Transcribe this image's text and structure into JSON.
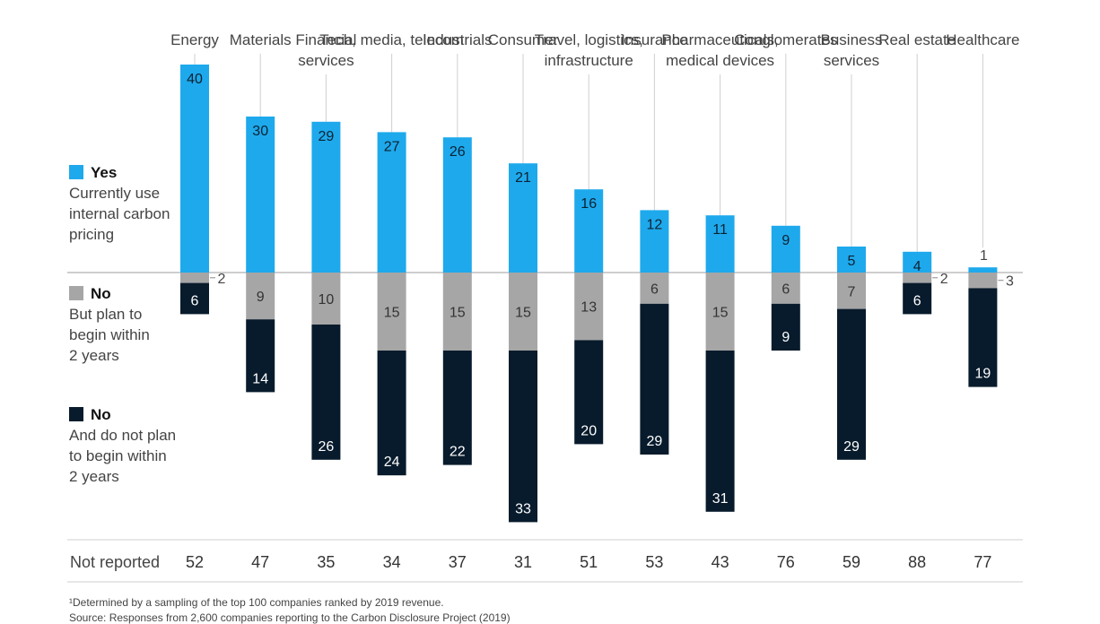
{
  "chart_data": {
    "type": "bar",
    "categories": [
      [
        "Energy"
      ],
      [
        "Materials"
      ],
      [
        "Financial",
        "services"
      ],
      [
        "Tech, media, telecom"
      ],
      [
        "Industrials"
      ],
      [
        "Consumer"
      ],
      [
        "Travel, logistics,",
        "infrastructure"
      ],
      [
        "Insurance"
      ],
      [
        "Pharmaceuticals,",
        "medical devices"
      ],
      [
        "Conglomerates"
      ],
      [
        "Business",
        "services"
      ],
      [
        "Real estate"
      ],
      [
        "Healthcare"
      ]
    ],
    "series": [
      {
        "name": "Yes",
        "values": [
          40,
          30,
          29,
          27,
          26,
          21,
          16,
          12,
          11,
          9,
          5,
          4,
          1
        ],
        "color": "#1ea9ec"
      },
      {
        "name": "No",
        "values": [
          2,
          9,
          10,
          15,
          15,
          15,
          13,
          6,
          15,
          6,
          7,
          2,
          3
        ],
        "color": "#a6a6a6"
      },
      {
        "name": "No",
        "values": [
          6,
          14,
          26,
          24,
          22,
          33,
          20,
          29,
          31,
          9,
          29,
          6,
          19
        ],
        "color": "#081b2c"
      }
    ],
    "not_reported_label": "Not reported",
    "not_reported": [
      52,
      47,
      35,
      34,
      37,
      31,
      51,
      53,
      43,
      76,
      59,
      88,
      77
    ]
  },
  "legend": [
    {
      "title": "Yes",
      "desc": "Currently use internal carbon pricing",
      "color": "#1ea9ec"
    },
    {
      "title": "No",
      "desc": "But plan to begin within 2 years",
      "color": "#a6a6a6"
    },
    {
      "title": "No",
      "desc": "And do not plan to begin within 2 years",
      "color": "#081b2c"
    }
  ],
  "footnotes": [
    "¹Determined by a sampling of the top 100 companies ranked by 2019 revenue.",
    "Source: Responses from 2,600 companies reporting to the Carbon Disclosure Project (2019)"
  ]
}
